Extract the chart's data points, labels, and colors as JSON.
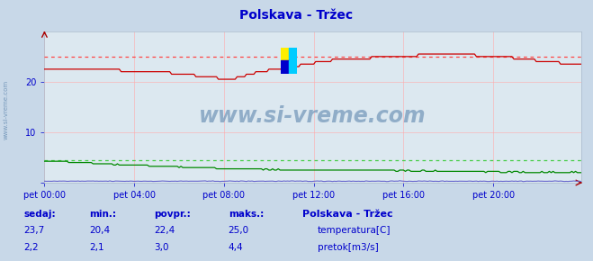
{
  "title": "Polskava - Tržec",
  "title_color": "#0000cc",
  "bg_color": "#c8d8e8",
  "plot_bg_color": "#dce8f0",
  "grid_color": "#ffaaaa",
  "xtick_labels": [
    "pet 00:00",
    "pet 04:00",
    "pet 08:00",
    "pet 12:00",
    "pet 16:00",
    "pet 20:00"
  ],
  "xtick_positions": [
    0,
    48,
    96,
    144,
    192,
    240
  ],
  "temp_color": "#cc0000",
  "flow_color": "#008800",
  "height_color": "#6666cc",
  "temp_dotted_color": "#ff4444",
  "flow_dotted_color": "#44cc44",
  "watermark_text": "www.si-vreme.com",
  "watermark_color": "#7799bb",
  "left_label": "www.si-vreme.com",
  "left_label_color": "#7799bb",
  "footer_bg": "#c8d8e8",
  "footer_text_color": "#0000cc",
  "legend_title": "Polskava - Tržec",
  "temp_min": 20.4,
  "temp_max": 25.0,
  "temp_avg": 22.4,
  "temp_cur": 23.7,
  "flow_min": 2.1,
  "flow_max": 4.4,
  "flow_avg": 3.0,
  "flow_cur": 2.2,
  "y_max": 30,
  "y_min": 0,
  "n_points": 288
}
